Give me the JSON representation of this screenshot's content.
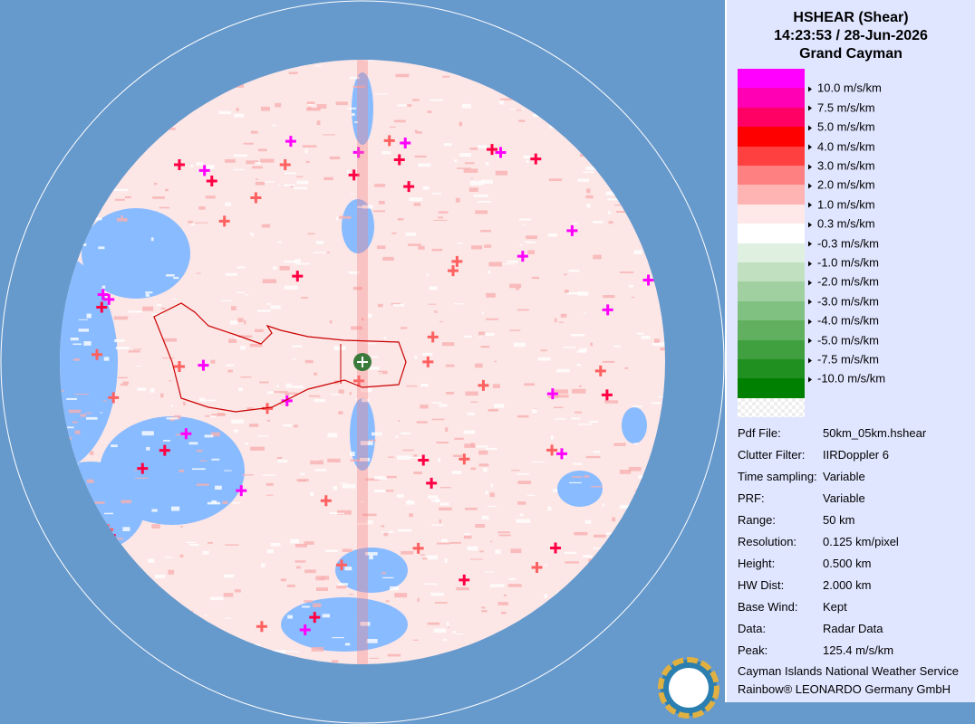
{
  "header": {
    "title": "HSHEAR (Shear)",
    "time": "14:23:53 / 28-Jun-2026",
    "site": "Grand Cayman"
  },
  "legend": {
    "colors": [
      "#ff00ff",
      "#ff00b4",
      "#ff0064",
      "#ff0000",
      "#ff4040",
      "#ff8080",
      "#ffb4b4",
      "#ffe8e8",
      "#ffffff",
      "#e0f0e0",
      "#c0e0c0",
      "#a0d0a0",
      "#80c080",
      "#60b060",
      "#40a040",
      "#209020",
      "#008000"
    ],
    "labels": [
      "10.0 m/s/km",
      "7.5 m/s/km",
      "5.0 m/s/km",
      "4.0 m/s/km",
      "3.0 m/s/km",
      "2.0 m/s/km",
      "1.0 m/s/km",
      "0.3 m/s/km",
      "-0.3 m/s/km",
      "-1.0 m/s/km",
      "-2.0 m/s/km",
      "-3.0 m/s/km",
      "-4.0 m/s/km",
      "-5.0 m/s/km",
      "-7.5 m/s/km",
      "-10.0 m/s/km"
    ]
  },
  "info": [
    [
      "Pdf File:",
      "50km_05km.hshear"
    ],
    [
      "Clutter Filter:",
      "IIRDoppler 6"
    ],
    [
      "Time sampling:",
      "Variable"
    ],
    [
      "PRF:",
      "Variable"
    ],
    [
      "Range:",
      "50 km"
    ],
    [
      "Resolution:",
      "0.125 km/pixel"
    ],
    [
      "Height:",
      "0.500 km"
    ],
    [
      "HW Dist:",
      "2.000 km"
    ],
    [
      "Base Wind:",
      "Kept"
    ],
    [
      "Data:",
      "Radar Data"
    ],
    [
      "Peak:",
      "125.4 m/s/km"
    ]
  ],
  "footer": [
    "Cayman Islands National Weather Service",
    "Rainbow® LEONARDO Germany GmbH"
  ]
}
